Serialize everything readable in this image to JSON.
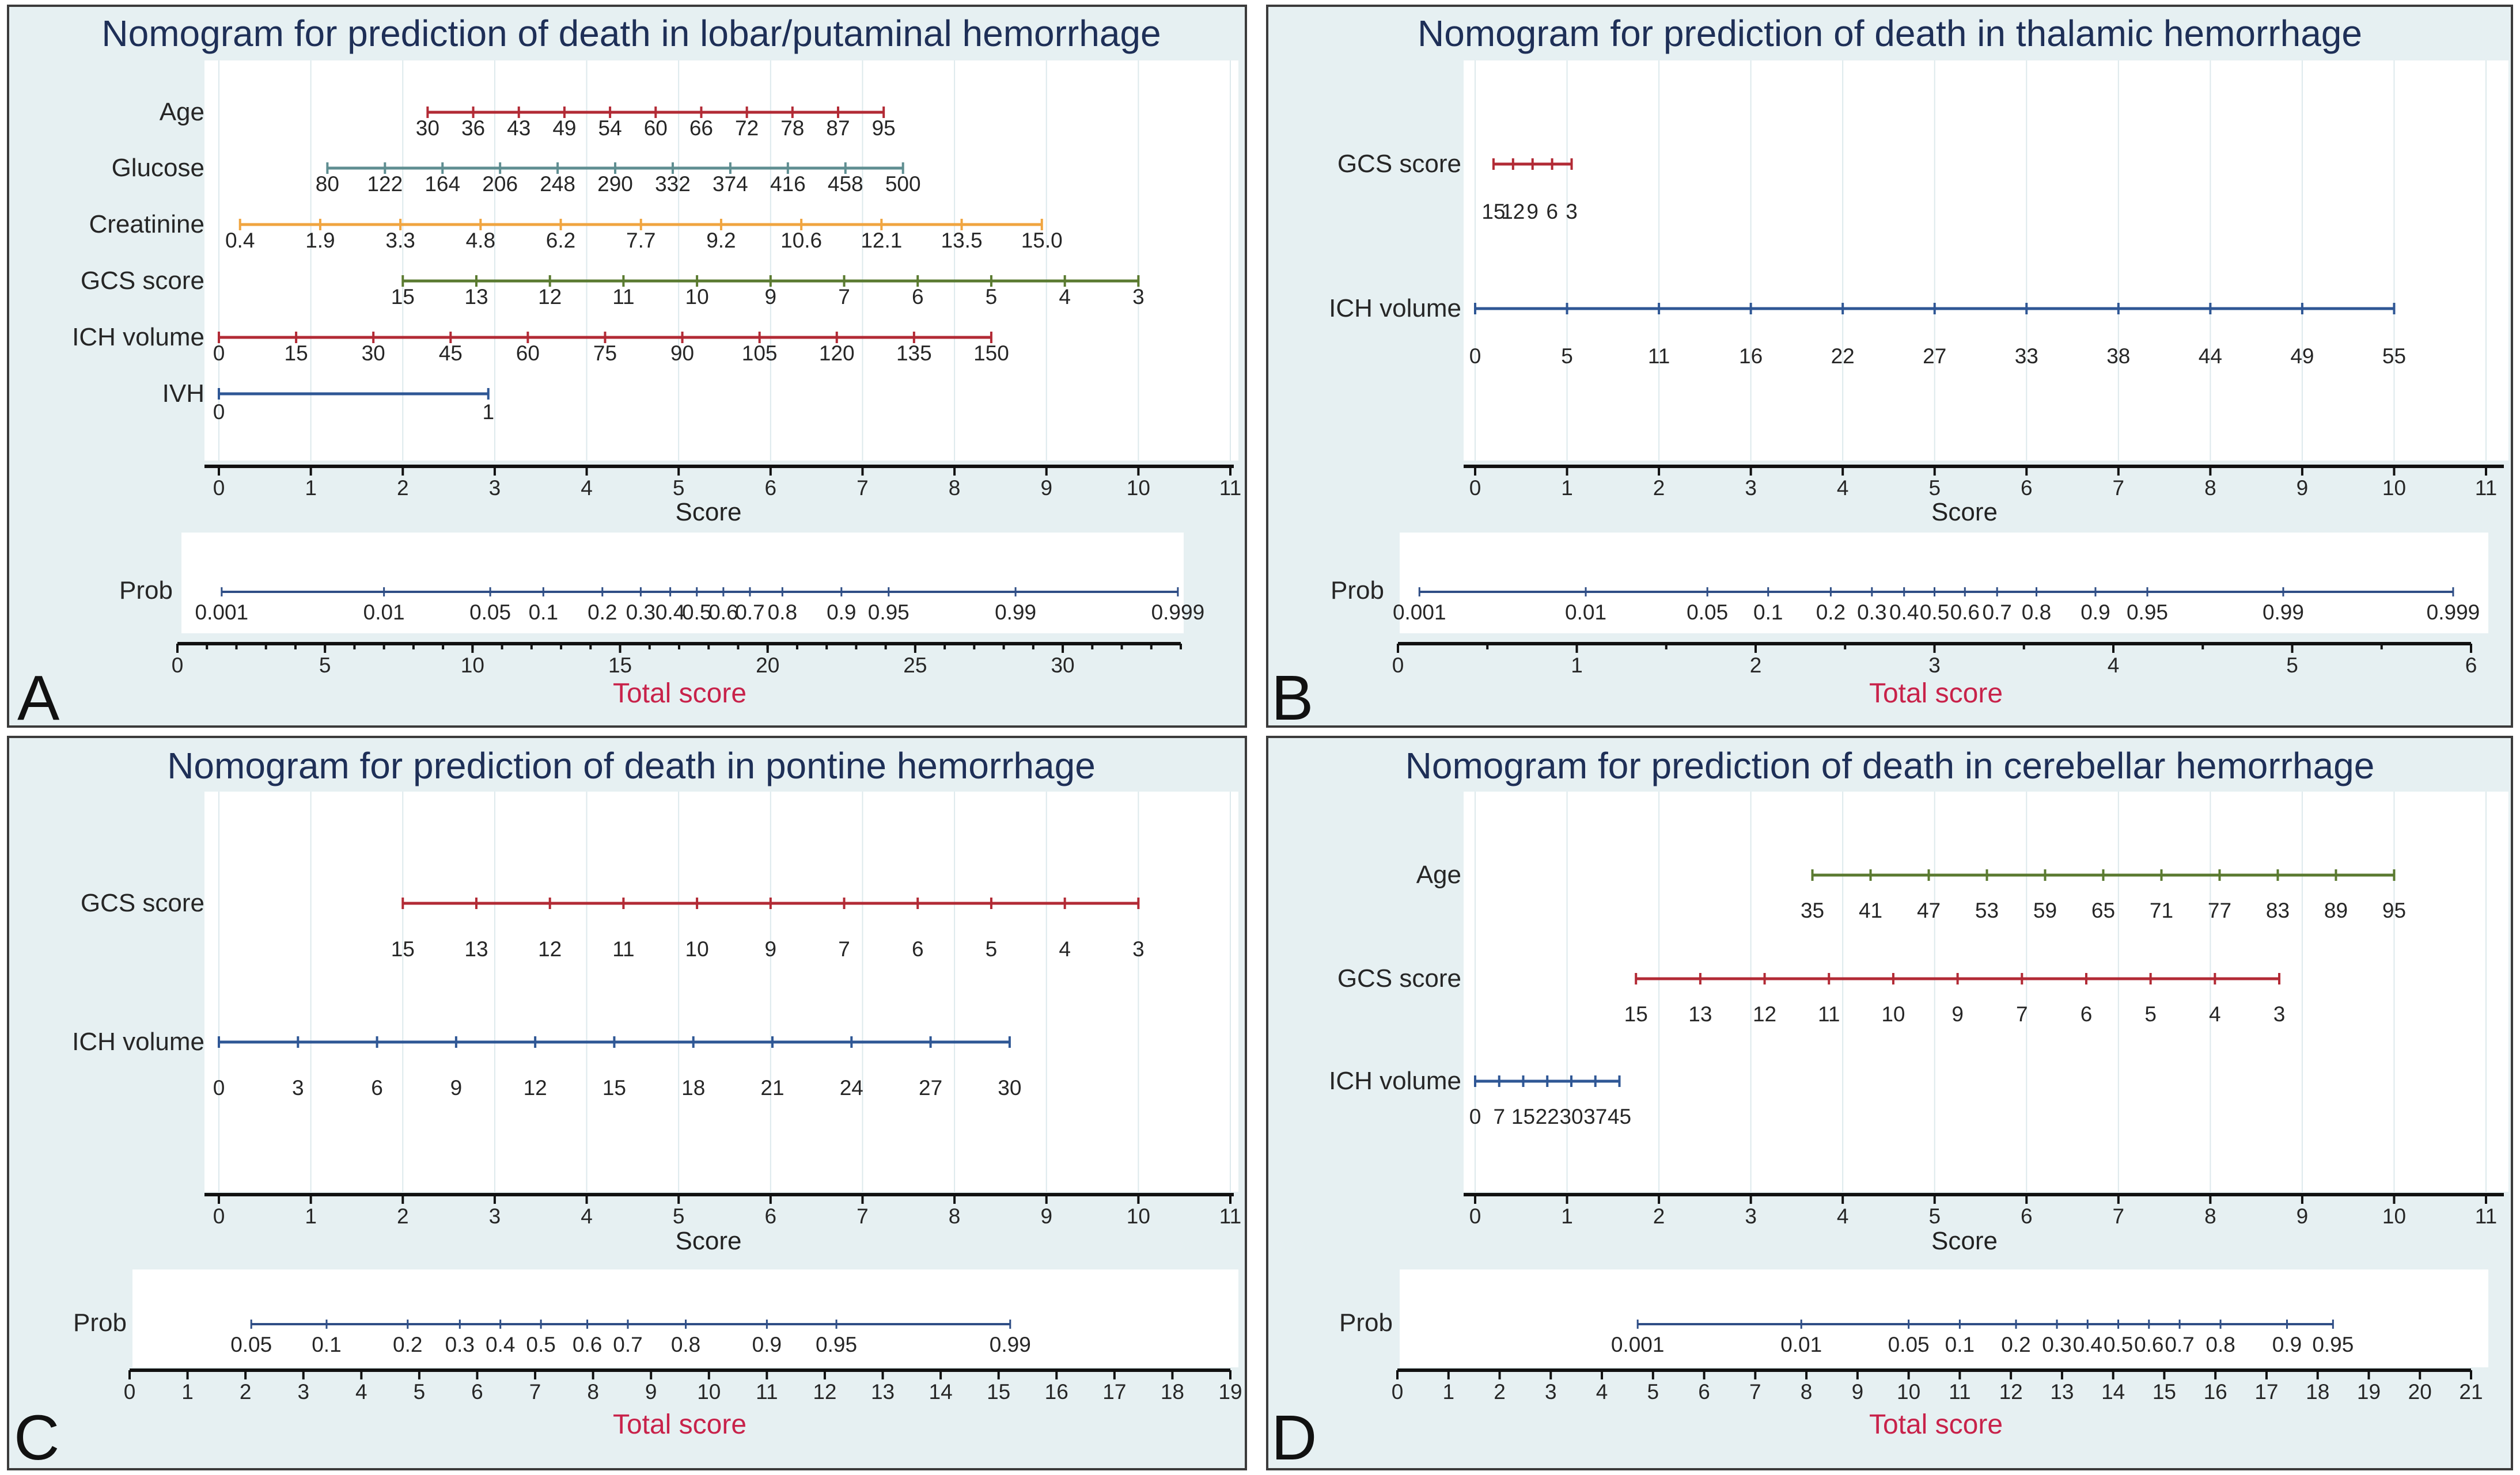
{
  "colors": {
    "panel_bg": "#e6f0f2",
    "plot_bg": "#ffffff",
    "title": "#1e2f57",
    "total_score_label": "#c8224a",
    "red": "#b22a35",
    "teal": "#5f8e91",
    "orange": "#f0a540",
    "green": "#5a7a30",
    "blue": "#2f5795"
  },
  "chart_data": [
    {
      "panel": "A",
      "type": "nomogram",
      "title": "Nomogram for prediction of death in lobar/putaminal hemorrhage",
      "score_axis": {
        "label": "Score",
        "range": [
          0,
          11
        ],
        "ticks": [
          "0",
          "1",
          "2",
          "3",
          "4",
          "5",
          "6",
          "7",
          "8",
          "9",
          "10",
          "11"
        ]
      },
      "variables": [
        {
          "name": "Age",
          "color": "red",
          "range": [
            2.27,
            7.23
          ],
          "labels": [
            "30",
            "36",
            "43",
            "49",
            "54",
            "60",
            "66",
            "72",
            "78",
            "87",
            "95"
          ]
        },
        {
          "name": "Glucose",
          "color": "teal",
          "range": [
            1.18,
            7.44
          ],
          "labels": [
            "80",
            "122",
            "164",
            "206",
            "248",
            "290",
            "332",
            "374",
            "416",
            "458",
            "500"
          ]
        },
        {
          "name": "Creatinine",
          "color": "orange",
          "range": [
            0.23,
            8.95
          ],
          "labels": [
            "0.4",
            "1.9",
            "3.3",
            "4.8",
            "6.2",
            "7.7",
            "9.2",
            "10.6",
            "12.1",
            "13.5",
            "15.0"
          ]
        },
        {
          "name": "GCS score",
          "color": "green",
          "range": [
            2.0,
            10.0
          ],
          "labels": [
            "15",
            "13",
            "12",
            "11",
            "10",
            "9",
            "7",
            "6",
            "5",
            "4",
            "3"
          ]
        },
        {
          "name": "ICH volume",
          "color": "red",
          "range": [
            0.0,
            8.4
          ],
          "labels": [
            "0",
            "15",
            "30",
            "45",
            "60",
            "75",
            "90",
            "105",
            "120",
            "135",
            "150"
          ]
        },
        {
          "name": "IVH",
          "color": "blue",
          "range": [
            0.0,
            2.93
          ],
          "labels": [
            "0",
            "1"
          ]
        }
      ],
      "prob": {
        "label": "Prob",
        "values": [
          "0.001",
          "0.01",
          "0.05",
          "0.1",
          "0.2",
          "0.3",
          "0.4",
          "0.5",
          "0.6",
          "0.7",
          "0.8",
          "0.9",
          "0.95",
          "0.99",
          "0.999"
        ],
        "positions": [
          1.5,
          7.0,
          10.6,
          12.4,
          14.4,
          15.7,
          16.7,
          17.6,
          18.5,
          19.4,
          20.5,
          22.5,
          24.1,
          28.4,
          33.9
        ]
      },
      "total_score": {
        "label": "Total score",
        "range": [
          0,
          34
        ],
        "ticks": [
          "0",
          "5",
          "10",
          "15",
          "20",
          "25",
          "30"
        ]
      }
    },
    {
      "panel": "B",
      "type": "nomogram",
      "title": "Nomogram for prediction of death in thalamic hemorrhage",
      "score_axis": {
        "label": "Score",
        "range": [
          0,
          11
        ],
        "ticks": [
          "0",
          "1",
          "2",
          "3",
          "4",
          "5",
          "6",
          "7",
          "8",
          "9",
          "10",
          "11"
        ]
      },
      "variables": [
        {
          "name": "GCS score",
          "color": "red",
          "range": [
            0.2,
            1.05
          ],
          "labels": [
            "15",
            "12",
            "9",
            "6",
            "3"
          ]
        },
        {
          "name": "ICH volume",
          "color": "blue",
          "range": [
            0.0,
            10.0
          ],
          "labels": [
            "0",
            "5",
            "11",
            "16",
            "22",
            "27",
            "33",
            "38",
            "44",
            "49",
            "55"
          ]
        }
      ],
      "prob": {
        "label": "Prob",
        "values": [
          "0.001",
          "0.01",
          "0.05",
          "0.1",
          "0.2",
          "0.3",
          "0.4",
          "0.5",
          "0.6",
          "0.7",
          "0.8",
          "0.9",
          "0.95",
          "0.99",
          "0.999"
        ],
        "positions": [
          0.12,
          1.05,
          1.73,
          2.07,
          2.42,
          2.65,
          2.83,
          3.0,
          3.17,
          3.35,
          3.57,
          3.9,
          4.19,
          4.95,
          5.9
        ]
      },
      "total_score": {
        "label": "Total score",
        "range": [
          0,
          6
        ],
        "ticks": [
          "0",
          "1",
          "2",
          "3",
          "4",
          "5",
          "6"
        ]
      }
    },
    {
      "panel": "C",
      "type": "nomogram",
      "title": "Nomogram for prediction of death in pontine hemorrhage",
      "score_axis": {
        "label": "Score",
        "range": [
          0,
          11
        ],
        "ticks": [
          "0",
          "1",
          "2",
          "3",
          "4",
          "5",
          "6",
          "7",
          "8",
          "9",
          "10",
          "11"
        ]
      },
      "variables": [
        {
          "name": "GCS score",
          "color": "red",
          "range": [
            2.0,
            10.0
          ],
          "labels": [
            "15",
            "13",
            "12",
            "11",
            "10",
            "9",
            "7",
            "6",
            "5",
            "4",
            "3"
          ]
        },
        {
          "name": "ICH volume",
          "color": "blue",
          "range": [
            0.0,
            8.6
          ],
          "labels": [
            "0",
            "3",
            "6",
            "9",
            "12",
            "15",
            "18",
            "21",
            "24",
            "27",
            "30"
          ]
        }
      ],
      "prob": {
        "label": "Prob",
        "values": [
          "0.05",
          "0.1",
          "0.2",
          "0.3",
          "0.4",
          "0.5",
          "0.6",
          "0.7",
          "0.8",
          "0.9",
          "0.95",
          "0.99"
        ],
        "positions": [
          2.1,
          3.4,
          4.8,
          5.7,
          6.4,
          7.1,
          7.9,
          8.6,
          9.6,
          11.0,
          12.2,
          15.2
        ]
      },
      "total_score": {
        "label": "Total score",
        "range": [
          0,
          19
        ],
        "ticks": [
          "0",
          "1",
          "2",
          "3",
          "4",
          "5",
          "6",
          "7",
          "8",
          "9",
          "10",
          "11",
          "12",
          "13",
          "14",
          "15",
          "16",
          "17",
          "18",
          "19"
        ]
      }
    },
    {
      "panel": "D",
      "type": "nomogram",
      "title": "Nomogram for prediction of death in cerebellar hemorrhage",
      "score_axis": {
        "label": "Score",
        "range": [
          0,
          11
        ],
        "ticks": [
          "0",
          "1",
          "2",
          "3",
          "4",
          "5",
          "6",
          "7",
          "8",
          "9",
          "10",
          "11"
        ]
      },
      "variables": [
        {
          "name": "Age",
          "color": "green",
          "range": [
            3.67,
            10.0
          ],
          "labels": [
            "35",
            "41",
            "47",
            "53",
            "59",
            "65",
            "71",
            "77",
            "83",
            "89",
            "95"
          ]
        },
        {
          "name": "GCS score",
          "color": "red",
          "range": [
            1.75,
            8.75
          ],
          "labels": [
            "15",
            "13",
            "12",
            "11",
            "10",
            "9",
            "7",
            "6",
            "5",
            "4",
            "3"
          ]
        },
        {
          "name": "ICH volume",
          "color": "blue",
          "range": [
            0.0,
            1.57
          ],
          "labels": [
            "0",
            "7",
            "15",
            "22",
            "30",
            "37",
            "45"
          ]
        }
      ],
      "prob": {
        "label": "Prob",
        "values": [
          "0.001",
          "0.01",
          "0.05",
          "0.1",
          "0.2",
          "0.3",
          "0.4",
          "0.5",
          "0.6",
          "0.7",
          "0.8",
          "0.9",
          "0.95"
        ],
        "positions": [
          4.7,
          7.9,
          10.0,
          11.0,
          12.1,
          12.9,
          13.5,
          14.1,
          14.7,
          15.3,
          16.1,
          17.4,
          18.3
        ]
      },
      "total_score": {
        "label": "Total score",
        "range": [
          0,
          21
        ],
        "ticks": [
          "0",
          "1",
          "2",
          "3",
          "4",
          "5",
          "6",
          "7",
          "8",
          "9",
          "10",
          "11",
          "12",
          "13",
          "14",
          "15",
          "16",
          "17",
          "18",
          "19",
          "20",
          "21"
        ]
      }
    }
  ]
}
